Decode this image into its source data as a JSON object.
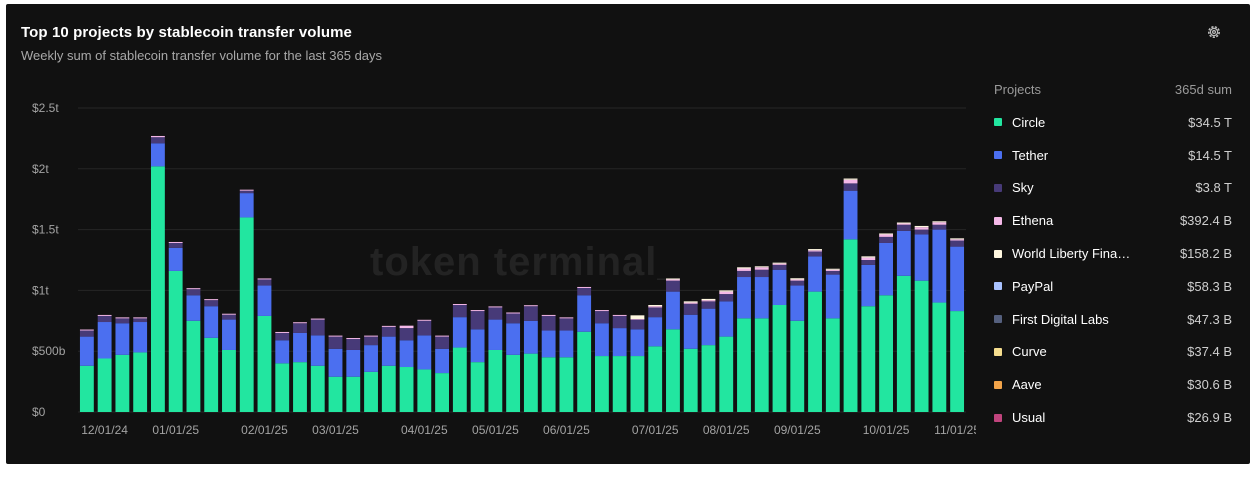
{
  "header": {
    "title": "Top 10 projects by stablecoin transfer volume",
    "subtitle": "Weekly sum of stablecoin transfer volume for the last 365 days",
    "settings_icon": "gear-icon"
  },
  "watermark": "token terminal_",
  "legend": {
    "col_project": "Projects",
    "col_sum": "365d sum",
    "items": [
      {
        "name": "Circle",
        "value": "$34.5 T",
        "color": "#22e6a0"
      },
      {
        "name": "Tether",
        "value": "$14.5 T",
        "color": "#4b6ff0"
      },
      {
        "name": "Sky",
        "value": "$3.8 T",
        "color": "#473a78"
      },
      {
        "name": "Ethena",
        "value": "$392.4 B",
        "color": "#f4b8e8"
      },
      {
        "name": "World Liberty Fina…",
        "value": "$158.2 B",
        "color": "#fff7e0"
      },
      {
        "name": "PayPal",
        "value": "$58.3 B",
        "color": "#a9c2ff"
      },
      {
        "name": "First Digital Labs",
        "value": "$47.3 B",
        "color": "#55607e"
      },
      {
        "name": "Curve",
        "value": "$37.4 B",
        "color": "#f5dd8e"
      },
      {
        "name": "Aave",
        "value": "$30.6 B",
        "color": "#f2a44a"
      },
      {
        "name": "Usual",
        "value": "$26.9 B",
        "color": "#c0447d"
      }
    ]
  },
  "chart_data": {
    "type": "bar",
    "stacked": true,
    "title": "Top 10 projects by stablecoin transfer volume",
    "subtitle": "Weekly sum of stablecoin transfer volume for the last 365 days",
    "ylim": [
      0,
      2.5
    ],
    "ytick_values": [
      0,
      0.5,
      1,
      1.5,
      2,
      2.5
    ],
    "ytick_labels": [
      "$0",
      "$500b",
      "$1t",
      "$1.5t",
      "$2t",
      "$2.5t"
    ],
    "xtick_labels": [
      "12/01/24",
      "01/01/25",
      "02/01/25",
      "03/01/25",
      "04/01/25",
      "05/01/25",
      "06/01/25",
      "07/01/25",
      "08/01/25",
      "09/01/25",
      "10/01/25",
      "11/01/25"
    ],
    "xtick_week_index": [
      1,
      5,
      10,
      14,
      19,
      23,
      27,
      32,
      36,
      40,
      45,
      49
    ],
    "grid": true,
    "legend_position": "right",
    "series": [
      {
        "name": "Circle",
        "color": "#22e6a0",
        "values": [
          0.38,
          0.44,
          0.47,
          0.49,
          2.02,
          1.16,
          0.75,
          0.61,
          0.51,
          1.6,
          0.79,
          0.4,
          0.41,
          0.38,
          0.29,
          0.29,
          0.33,
          0.38,
          0.37,
          0.35,
          0.32,
          0.53,
          0.41,
          0.51,
          0.47,
          0.48,
          0.45,
          0.45,
          0.66,
          0.46,
          0.46,
          0.46,
          0.54,
          0.68,
          0.52,
          0.55,
          0.62,
          0.77,
          0.77,
          0.88,
          0.75,
          0.99,
          0.77,
          1.42,
          0.87,
          0.96,
          1.12,
          1.08,
          0.9,
          0.83
        ]
      },
      {
        "name": "Tether",
        "color": "#4b6ff0",
        "values": [
          0.24,
          0.3,
          0.26,
          0.25,
          0.19,
          0.19,
          0.21,
          0.26,
          0.25,
          0.2,
          0.25,
          0.19,
          0.24,
          0.25,
          0.23,
          0.22,
          0.22,
          0.24,
          0.22,
          0.28,
          0.2,
          0.25,
          0.27,
          0.25,
          0.26,
          0.27,
          0.22,
          0.22,
          0.3,
          0.27,
          0.23,
          0.22,
          0.24,
          0.31,
          0.28,
          0.3,
          0.29,
          0.34,
          0.34,
          0.29,
          0.29,
          0.29,
          0.36,
          0.4,
          0.34,
          0.43,
          0.37,
          0.38,
          0.6,
          0.53
        ]
      },
      {
        "name": "Sky",
        "color": "#473a78",
        "values": [
          0.05,
          0.05,
          0.04,
          0.03,
          0.05,
          0.04,
          0.05,
          0.05,
          0.04,
          0.02,
          0.05,
          0.06,
          0.08,
          0.13,
          0.1,
          0.09,
          0.07,
          0.08,
          0.1,
          0.12,
          0.1,
          0.1,
          0.15,
          0.1,
          0.08,
          0.12,
          0.12,
          0.1,
          0.06,
          0.1,
          0.1,
          0.08,
          0.08,
          0.09,
          0.09,
          0.06,
          0.06,
          0.05,
          0.06,
          0.04,
          0.04,
          0.04,
          0.03,
          0.06,
          0.04,
          0.05,
          0.05,
          0.04,
          0.04,
          0.05
        ]
      },
      {
        "name": "Ethena",
        "color": "#f4b8e8",
        "values": [
          0.005,
          0.005,
          0.005,
          0.005,
          0.01,
          0.005,
          0.005,
          0.005,
          0.005,
          0.005,
          0.005,
          0.005,
          0.005,
          0.005,
          0.005,
          0.005,
          0.005,
          0.005,
          0.02,
          0.005,
          0.005,
          0.005,
          0.005,
          0.005,
          0.005,
          0.005,
          0.005,
          0.005,
          0.005,
          0.005,
          0.005,
          0.005,
          0.01,
          0.01,
          0.01,
          0.01,
          0.02,
          0.02,
          0.02,
          0.01,
          0.01,
          0.01,
          0.01,
          0.03,
          0.02,
          0.02,
          0.01,
          0.02,
          0.02,
          0.01
        ]
      },
      {
        "name": "World Liberty Fina…",
        "color": "#fff7e0",
        "values": [
          0,
          0,
          0,
          0,
          0,
          0,
          0,
          0,
          0,
          0,
          0,
          0,
          0,
          0,
          0,
          0,
          0,
          0,
          0,
          0,
          0,
          0,
          0,
          0,
          0,
          0,
          0,
          0,
          0,
          0,
          0,
          0.03,
          0.01,
          0.005,
          0.01,
          0.01,
          0.01,
          0.01,
          0.005,
          0.005,
          0.01,
          0.01,
          0.005,
          0.01,
          0.01,
          0.005,
          0.005,
          0.01,
          0.005,
          0.005
        ]
      }
    ]
  }
}
